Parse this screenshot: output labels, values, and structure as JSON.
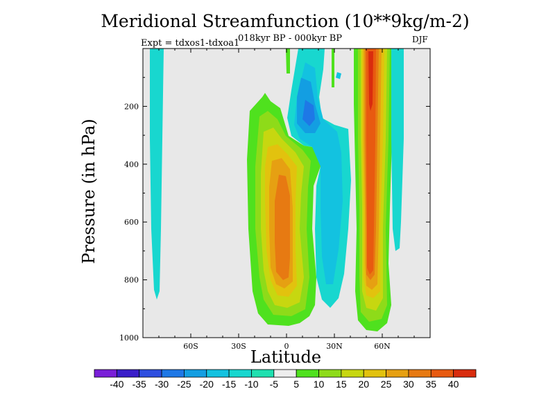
{
  "chart_data": {
    "type": "heatmap",
    "title": "Meridional Streamfunction (10**9kg/m-2)",
    "subtitle": "018kyr BP - 000kyr BP",
    "experiment": "Expt = tdxos1-tdxoa1",
    "season": "DJF",
    "xlabel": "Latitude",
    "ylabel": "Pressure (in hPa)",
    "xlim": [
      -90,
      90
    ],
    "ylim": [
      1000,
      0
    ],
    "x_ticks": [
      {
        "value": -60,
        "label": "60S"
      },
      {
        "value": -30,
        "label": "30S"
      },
      {
        "value": 0,
        "label": "0"
      },
      {
        "value": 30,
        "label": "30N"
      },
      {
        "value": 60,
        "label": "60N"
      }
    ],
    "y_ticks": [
      {
        "value": 200,
        "label": "200"
      },
      {
        "value": 400,
        "label": "400"
      },
      {
        "value": 600,
        "label": "600"
      },
      {
        "value": 800,
        "label": "800"
      },
      {
        "value": 1000,
        "label": "1000"
      }
    ],
    "contour_levels": [
      -40,
      -35,
      -30,
      -25,
      -20,
      -15,
      -10,
      -5,
      5,
      10,
      15,
      20,
      25,
      30,
      35,
      40
    ],
    "colorbar_colors": [
      "#7A1FD8",
      "#3A1EC9",
      "#2E4FE0",
      "#1E78E6",
      "#139EE2",
      "#13C2E0",
      "#18D7CF",
      "#1FE0B0",
      "#EDEDED",
      "#4FE11E",
      "#8EDB19",
      "#C7D710",
      "#E2C20E",
      "#E6A012",
      "#E77A12",
      "#E85A10",
      "#D92C0E"
    ],
    "features": [
      {
        "name": "nh-positive-cell",
        "value": 38,
        "lat": [
          44,
          58
        ],
        "p": [
          0,
          990
        ]
      },
      {
        "name": "tropical-positive-cell",
        "value": 33,
        "lat": [
          -20,
          12
        ],
        "p": [
          130,
          960
        ]
      },
      {
        "name": "sh-negative-band",
        "value": -8,
        "lat": [
          -86,
          -80
        ],
        "p": [
          0,
          870
        ]
      },
      {
        "name": "tropical-negative-cell",
        "value": -20,
        "lat": [
          5,
          35
        ],
        "p": [
          0,
          970
        ]
      },
      {
        "name": "high-lat-negative-band",
        "value": -8,
        "lat": [
          64,
          72
        ],
        "p": [
          0,
          700
        ]
      }
    ]
  },
  "colors": {
    "background": "#E8E8E8",
    "frame": "#000000"
  }
}
